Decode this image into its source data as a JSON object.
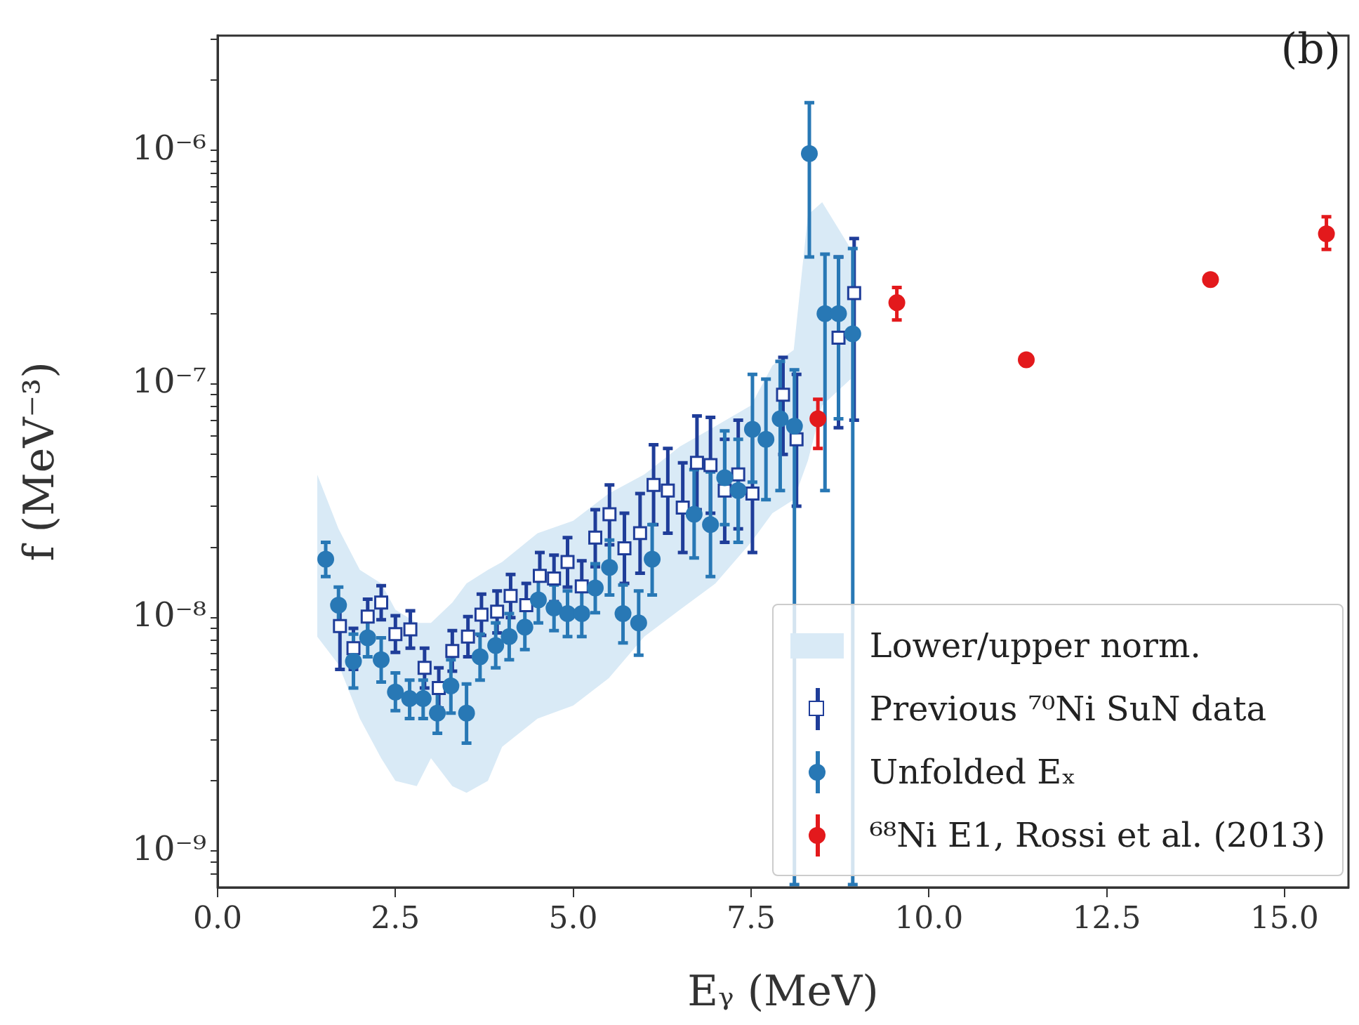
{
  "chart_data": {
    "type": "scatter",
    "xlabel": "Eᵧ (MeV)",
    "ylabel": "f (MeV⁻³)",
    "log": "y",
    "legend": "bottom right",
    "marker": "circle",
    "annotations": [
      "(b)"
    ],
    "xlim": [
      0,
      15.9
    ],
    "xticks": [
      {
        "value": 0,
        "label": "0.0"
      },
      {
        "value": 2.5,
        "label": "2.5"
      },
      {
        "value": 5,
        "label": "5.0"
      },
      {
        "value": 7.5,
        "label": "7.5"
      },
      {
        "value": 10,
        "label": "10.0"
      },
      {
        "value": 12.5,
        "label": "12.5"
      },
      {
        "value": 15,
        "label": "15.0"
      }
    ],
    "ylim": [
      7.2e-10,
      3.1e-06
    ],
    "yticks": [
      {
        "value": 8e-10,
        "label": null
      },
      {
        "value": 9e-10,
        "label": null
      },
      {
        "value": 1e-09,
        "label": "10⁻⁹"
      },
      {
        "value": 2e-09,
        "label": null
      },
      {
        "value": 3e-09,
        "label": null
      },
      {
        "value": 4e-09,
        "label": null
      },
      {
        "value": 5e-09,
        "label": null
      },
      {
        "value": 6e-09,
        "label": null
      },
      {
        "value": 7e-09,
        "label": null
      },
      {
        "value": 8e-09,
        "label": null
      },
      {
        "value": 9e-09,
        "label": null
      },
      {
        "value": 1e-08,
        "label": "10⁻⁸"
      },
      {
        "value": 2e-08,
        "label": null
      },
      {
        "value": 3e-08,
        "label": null
      },
      {
        "value": 4e-08,
        "label": null
      },
      {
        "value": 5e-08,
        "label": null
      },
      {
        "value": 6e-08,
        "label": null
      },
      {
        "value": 7e-08,
        "label": null
      },
      {
        "value": 8e-08,
        "label": null
      },
      {
        "value": 9e-08,
        "label": null
      },
      {
        "value": 1e-07,
        "label": "10⁻⁷"
      },
      {
        "value": 2e-07,
        "label": null
      },
      {
        "value": 3e-07,
        "label": null
      },
      {
        "value": 4e-07,
        "label": null
      },
      {
        "value": 5e-07,
        "label": null
      },
      {
        "value": 6e-07,
        "label": null
      },
      {
        "value": 7e-07,
        "label": null
      },
      {
        "value": 8e-07,
        "label": null
      },
      {
        "value": 9e-07,
        "label": null
      },
      {
        "value": 1e-06,
        "label": "10⁻⁶"
      },
      {
        "value": 2e-06,
        "label": null
      },
      {
        "value": 3e-06,
        "label": null
      }
    ],
    "series": [
      {
        "name": "Lower/upper norm.",
        "type": "area",
        "color": "#d9eaf6",
        "x": [
          1.4,
          1.7,
          2.0,
          2.3,
          2.5,
          2.8,
          3.0,
          3.3,
          3.5,
          3.8,
          4.0,
          4.5,
          5.0,
          5.5,
          6.0,
          6.5,
          7.0,
          7.5,
          7.8,
          8.1,
          8.3,
          8.5,
          8.9
        ],
        "values": [
          null,
          null,
          null,
          null,
          null,
          null,
          null,
          null,
          null,
          null,
          null,
          null,
          null,
          null,
          null,
          null,
          null,
          null,
          null,
          null,
          null,
          null,
          null
        ],
        "upper": [
          4.1e-08,
          2.4e-08,
          1.6e-08,
          1.4e-08,
          1.08e-08,
          9.5e-09,
          9.5e-09,
          1.16e-08,
          1.4e-08,
          1.6e-08,
          1.73e-08,
          2.3e-08,
          2.6e-08,
          3.4e-08,
          4.1e-08,
          5.4e-08,
          6.6e-08,
          8.1e-08,
          1.2e-07,
          1.4e-07,
          5.3e-07,
          6e-07,
          3.8e-07
        ],
        "lower": [
          8.3e-09,
          6.3e-09,
          3.7e-09,
          2.5e-09,
          2e-09,
          1.9e-09,
          2.5e-09,
          1.9e-09,
          1.78e-09,
          2e-09,
          2.8e-09,
          3.7e-09,
          4.2e-09,
          5.5e-09,
          8.3e-09,
          1.08e-08,
          1.4e-08,
          2.1e-08,
          2.8e-08,
          3.2e-08,
          4.7e-08,
          8.1e-08,
          1.05e-07
        ]
      },
      {
        "name": "Previous ⁷⁰Ni SuN data",
        "type": "scatter",
        "marker": "square",
        "color": "#1f3d99",
        "x": [
          1.72,
          1.91,
          2.11,
          2.3,
          2.5,
          2.71,
          2.91,
          3.11,
          3.3,
          3.52,
          3.71,
          3.93,
          4.12,
          4.34,
          4.53,
          4.73,
          4.92,
          5.12,
          5.31,
          5.51,
          5.72,
          5.94,
          6.13,
          6.33,
          6.54,
          6.74,
          6.93,
          7.13,
          7.32,
          7.52,
          7.95,
          8.14,
          8.73,
          8.95
        ],
        "values": [
          9.2e-09,
          7.4e-09,
          1.01e-08,
          1.16e-08,
          8.5e-09,
          8.9e-09,
          6.1e-09,
          5e-09,
          7.2e-09,
          8.3e-09,
          1.03e-08,
          1.06e-08,
          1.24e-08,
          1.13e-08,
          1.51e-08,
          1.47e-08,
          1.73e-08,
          1.36e-08,
          2.2e-08,
          2.77e-08,
          1.98e-08,
          2.3e-08,
          3.7e-08,
          3.5e-08,
          2.96e-08,
          4.6e-08,
          4.5e-08,
          3.5e-08,
          4.1e-08,
          3.4e-08,
          9e-08,
          5.8e-08,
          1.58e-07,
          2.45e-07
        ],
        "errors": [
          [
            6e-09,
            1.1e-08
          ],
          [
            6e-09,
            9e-09
          ],
          [
            8.5e-09,
            1.2e-08
          ],
          [
            9.8e-09,
            1.37e-08
          ],
          [
            7.1e-09,
            1.02e-08
          ],
          [
            7.4e-09,
            1.07e-08
          ],
          [
            5e-09,
            7.4e-09
          ],
          [
            4.1e-09,
            6.1e-09
          ],
          [
            5.9e-09,
            8.8e-09
          ],
          [
            6.8e-09,
            1.01e-08
          ],
          [
            8.4e-09,
            1.26e-08
          ],
          [
            8.6e-09,
            1.3e-08
          ],
          [
            1e-08,
            1.53e-08
          ],
          [
            1.13e-08,
            1.4e-08
          ],
          [
            1.51e-08,
            1.9e-08
          ],
          [
            1.17e-08,
            1.85e-08
          ],
          [
            1.35e-08,
            2.2e-08
          ],
          [
            1.36e-08,
            1.75e-08
          ],
          [
            1.65e-08,
            2.9e-08
          ],
          [
            2.05e-08,
            3.7e-08
          ],
          [
            1.4e-08,
            2.8e-08
          ],
          [
            1.55e-08,
            3.4e-08
          ],
          [
            2.5e-08,
            5.5e-08
          ],
          [
            2.3e-08,
            5.3e-08
          ],
          [
            1.9e-08,
            4.6e-08
          ],
          [
            2.9e-08,
            7.3e-08
          ],
          [
            2.8e-08,
            7.2e-08
          ],
          [
            2.1e-08,
            5.8e-08
          ],
          [
            2.4e-08,
            7e-08
          ],
          [
            1.9e-08,
            6.1e-08
          ],
          [
            5e-08,
            1.3e-07
          ],
          [
            3e-08,
            1.1e-07
          ],
          [
            6.5e-08,
            3.5e-07
          ],
          [
            7e-08,
            4.2e-07
          ]
        ]
      },
      {
        "name": "Unfolded Eₓ",
        "type": "scatter",
        "color": "#2878b5",
        "x": [
          1.52,
          1.7,
          1.91,
          2.11,
          2.3,
          2.5,
          2.7,
          2.89,
          3.09,
          3.28,
          3.5,
          3.69,
          3.91,
          4.1,
          4.32,
          4.51,
          4.73,
          4.92,
          5.12,
          5.31,
          5.51,
          5.7,
          5.92,
          6.11,
          6.7,
          6.93,
          7.13,
          7.32,
          7.52,
          7.71,
          7.91,
          8.11,
          8.32,
          8.54,
          8.73,
          8.93
        ],
        "values": [
          1.78e-08,
          1.13e-08,
          6.5e-09,
          8.2e-09,
          6.6e-09,
          4.8e-09,
          4.5e-09,
          4.5e-09,
          3.9e-09,
          5.1e-09,
          3.9e-09,
          6.8e-09,
          7.6e-09,
          8.3e-09,
          9.1e-09,
          1.19e-08,
          1.1e-08,
          1.04e-08,
          1.04e-08,
          1.34e-08,
          1.64e-08,
          1.04e-08,
          9.5e-09,
          1.78e-08,
          2.77e-08,
          2.5e-08,
          3.97e-08,
          3.5e-08,
          6.4e-08,
          5.8e-08,
          7.1e-08,
          6.6e-08,
          9.7e-07,
          2e-07,
          2e-07,
          1.64e-07
        ],
        "errors": [
          [
            1.5e-08,
            2.1e-08
          ],
          [
            9.5e-09,
            1.35e-08
          ],
          [
            5e-09,
            8.5e-09
          ],
          [
            6.8e-09,
            1e-08
          ],
          [
            5.3e-09,
            8.2e-09
          ],
          [
            4e-09,
            5.8e-09
          ],
          [
            3.7e-09,
            5.4e-09
          ],
          [
            3.7e-09,
            5.4e-09
          ],
          [
            3.2e-09,
            4.8e-09
          ],
          [
            3.9e-09,
            6.6e-09
          ],
          [
            2.9e-09,
            5.2e-09
          ],
          [
            5.4e-09,
            8.5e-09
          ],
          [
            6.1e-09,
            9.5e-09
          ],
          [
            6.6e-09,
            1.04e-08
          ],
          [
            7.3e-09,
            1.14e-08
          ],
          [
            9.5e-09,
            1.5e-08
          ],
          [
            8.8e-09,
            1.38e-08
          ],
          [
            8.3e-09,
            1.3e-08
          ],
          [
            8.3e-09,
            1.3e-08
          ],
          [
            1.05e-08,
            1.7e-08
          ],
          [
            1.25e-08,
            2.15e-08
          ],
          [
            7.8e-09,
            1.38e-08
          ],
          [
            6.9e-09,
            1.3e-08
          ],
          [
            1.25e-08,
            2.5e-08
          ],
          [
            1.8e-08,
            4.3e-08
          ],
          [
            1.5e-08,
            4.2e-08
          ],
          [
            2.5e-08,
            6.3e-08
          ],
          [
            2.1e-08,
            5.8e-08
          ],
          [
            3.8e-08,
            1.1e-07
          ],
          [
            3.2e-08,
            1.05e-07
          ],
          [
            3.5e-08,
            1.25e-07
          ],
          [
            7.2e-10,
            1.15e-07
          ],
          [
            3.5e-07,
            1.6e-06
          ],
          [
            3.5e-08,
            3.6e-07
          ],
          [
            7.1e-08,
            3.5e-07
          ],
          [
            7.2e-10,
            3.8e-07
          ]
        ]
      },
      {
        "name": "⁶⁸Ni E1, Rossi et al. (2013)",
        "type": "scatter",
        "color": "#e3191c",
        "x": [
          8.44,
          9.55,
          11.37,
          13.96,
          15.59
        ],
        "values": [
          7.1e-08,
          2.23e-07,
          1.27e-07,
          2.8e-07,
          4.4e-07
        ],
        "errors": [
          [
            5.3e-08,
            8.6e-08
          ],
          [
            1.88e-07,
            2.59e-07
          ],
          null,
          null,
          [
            3.77e-07,
            5.2e-07
          ]
        ]
      }
    ]
  }
}
